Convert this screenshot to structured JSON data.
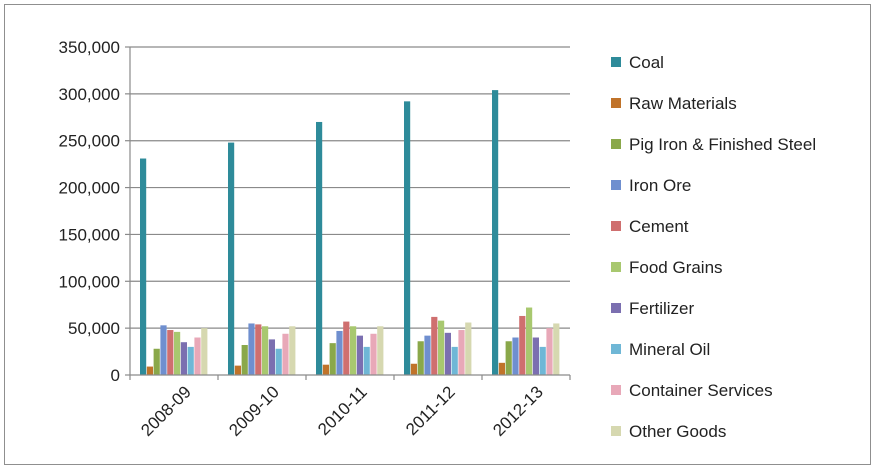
{
  "chart_data": {
    "type": "bar",
    "categories": [
      "2008-09",
      "2009-10",
      "2010-11",
      "2011-12",
      "2012-13"
    ],
    "series": [
      {
        "name": "Coal",
        "color": "#2e8b9a",
        "values": [
          231000,
          248000,
          270000,
          292000,
          304000
        ]
      },
      {
        "name": "Raw Materials",
        "color": "#c0732a",
        "values": [
          9000,
          10000,
          11000,
          12000,
          13000
        ]
      },
      {
        "name": "Pig Iron & Finished Steel",
        "color": "#8aa84a",
        "values": [
          28000,
          32000,
          34000,
          36000,
          36000
        ]
      },
      {
        "name": "Iron Ore",
        "color": "#6f8fcf",
        "values": [
          53000,
          55000,
          47000,
          42000,
          40000
        ]
      },
      {
        "name": "Cement",
        "color": "#cf6f6f",
        "values": [
          48000,
          54000,
          57000,
          62000,
          63000
        ]
      },
      {
        "name": "Food Grains",
        "color": "#a8c86f",
        "values": [
          46000,
          52000,
          52000,
          58000,
          72000
        ]
      },
      {
        "name": "Fertilizer",
        "color": "#7b6fb0",
        "values": [
          35000,
          38000,
          42000,
          45000,
          40000
        ]
      },
      {
        "name": "Mineral Oil",
        "color": "#6fb7d6",
        "values": [
          30000,
          28000,
          30000,
          30000,
          30000
        ]
      },
      {
        "name": "Container Services",
        "color": "#e8a8b8",
        "values": [
          40000,
          44000,
          44000,
          48000,
          50000
        ]
      },
      {
        "name": "Other Goods",
        "color": "#d6d8b0",
        "values": [
          50000,
          52000,
          52000,
          56000,
          55000
        ]
      }
    ],
    "ylim": [
      0,
      350000
    ],
    "yticks": [
      "0",
      "50,000",
      "100,000",
      "150,000",
      "200,000",
      "250,000",
      "300,000",
      "350,000"
    ],
    "grid": true,
    "legend": "right"
  }
}
